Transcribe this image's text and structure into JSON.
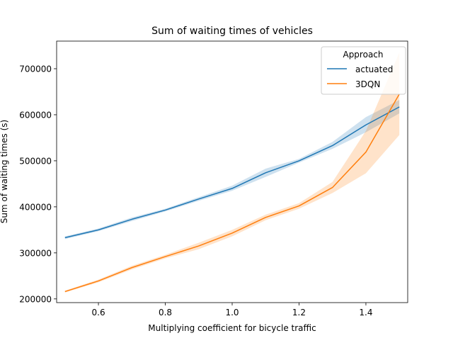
{
  "chart_data": {
    "type": "line",
    "title": "Sum of waiting times of vehicles",
    "xlabel": "Multiplying coefficient for bicycle traffic",
    "ylabel": "Sum of waiting times (s)",
    "xlim": [
      0.475,
      1.525
    ],
    "ylim": [
      192000,
      760000
    ],
    "xticks": [
      0.6,
      0.8,
      1.0,
      1.2,
      1.4
    ],
    "xtick_labels": [
      "0.6",
      "0.8",
      "1.0",
      "1.2",
      "1.4"
    ],
    "yticks": [
      200000,
      300000,
      400000,
      500000,
      600000,
      700000
    ],
    "ytick_labels": [
      "200000",
      "300000",
      "400000",
      "500000",
      "600000",
      "700000"
    ],
    "grid": false,
    "legend": {
      "title": "Approach",
      "placement": "top-right"
    },
    "x": [
      0.5,
      0.6,
      0.7,
      0.8,
      0.9,
      1.0,
      1.1,
      1.2,
      1.3,
      1.4,
      1.5
    ],
    "series": [
      {
        "name": "actuated",
        "color": "#1f77b4",
        "values": [
          333000,
          350000,
          373000,
          393000,
          417000,
          440000,
          474000,
          500000,
          533000,
          578000,
          617000
        ],
        "ci_lower": [
          330000,
          347000,
          369000,
          390000,
          413000,
          435000,
          465000,
          496000,
          526000,
          562000,
          603000
        ],
        "ci_upper": [
          336000,
          353000,
          377000,
          396000,
          421000,
          446000,
          483000,
          504000,
          541000,
          595000,
          632000
        ]
      },
      {
        "name": "3DQN",
        "color": "#ff7f0e",
        "values": [
          216000,
          239000,
          268000,
          292000,
          315000,
          343000,
          377000,
          402000,
          442000,
          519000,
          645000
        ],
        "ci_lower": [
          214000,
          236000,
          264000,
          288000,
          308000,
          336000,
          371000,
          396000,
          430000,
          473000,
          556000
        ],
        "ci_upper": [
          218000,
          242000,
          272000,
          296000,
          322000,
          350000,
          383000,
          408000,
          454000,
          565000,
          735000
        ]
      }
    ]
  }
}
